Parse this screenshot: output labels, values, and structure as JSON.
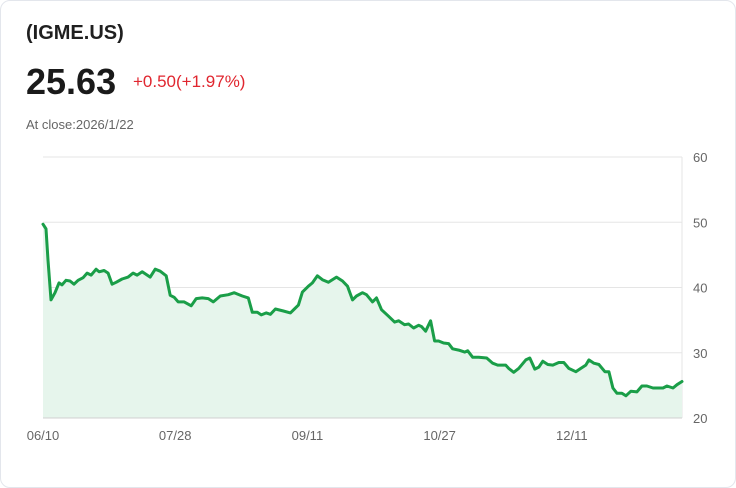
{
  "header": {
    "symbol": "(IGME.US)",
    "price": "25.63",
    "change": "+0.50(+1.97%)",
    "close_label": "At close:2026/1/22"
  },
  "colors": {
    "line": "#1a9e48",
    "fill": "#e6f5ec",
    "grid": "#e5e5e5",
    "down": "#e0262f"
  },
  "chart_data": {
    "type": "area",
    "title": "(IGME.US)",
    "xlabel": "",
    "ylabel": "",
    "ylim": [
      20,
      60
    ],
    "xlim": [
      0,
      159.5
    ],
    "y_ticks": [
      20,
      30,
      40,
      50,
      60
    ],
    "y_tick_labels": [
      "20",
      "30",
      "40",
      "50",
      "60"
    ],
    "x_ticks": [
      0,
      33,
      66,
      99,
      132
    ],
    "x_tick_labels": [
      "06/10",
      "07/28",
      "09/11",
      "10/27",
      "12/11"
    ],
    "grid": true,
    "x": [
      0,
      0.75,
      1.25,
      2,
      3,
      4,
      4.75,
      5.75,
      6.75,
      7.75,
      8.75,
      10,
      11,
      12,
      13.25,
      14,
      15.25,
      16.25,
      17.25,
      18.25,
      19.75,
      21.25,
      22.5,
      23.5,
      24.75,
      26.75,
      28,
      29.25,
      30.75,
      31.75,
      32.75,
      33.75,
      35.25,
      37,
      38.25,
      39.75,
      41.25,
      42.5,
      44.25,
      46.25,
      47.75,
      48.5,
      49.75,
      51.25,
      52.25,
      53.5,
      54.5,
      55.75,
      56.75,
      58,
      60,
      61.75,
      62.75,
      63.75,
      64.75,
      66.25,
      67.25,
      68.5,
      69.75,
      71.25,
      73.25,
      74.75,
      76,
      77.25,
      78.25,
      79.75,
      80.75,
      82.25,
      83.25,
      84.5,
      86.25,
      87.75,
      88.75,
      90.25,
      91.25,
      92.5,
      93.75,
      94.5,
      95.5,
      96.75,
      97.75,
      98.75,
      100,
      101.25,
      102.25,
      103.75,
      105.25,
      106,
      107.25,
      108.75,
      110.75,
      112.25,
      113.5,
      115.5,
      116.25,
      117.5,
      118.75,
      120.5,
      121.5,
      122.75,
      123.75,
      124.75,
      126,
      127.25,
      128.75,
      130,
      131.25,
      133,
      134.25,
      135.5,
      136.25,
      137.5,
      138.75,
      140.25,
      141.25,
      142.25,
      143.25,
      144.5,
      145.5,
      146.75,
      148.25,
      149.5,
      150.75,
      152.25,
      153.5,
      154.75,
      155.75,
      157.25,
      158.25,
      159.5
    ],
    "values": [
      49.7,
      49,
      44.2,
      38.1,
      39.2,
      40.7,
      40.4,
      41.1,
      41,
      40.5,
      41.1,
      41.5,
      42.2,
      41.9,
      42.8,
      42.4,
      42.6,
      42.2,
      40.5,
      40.8,
      41.3,
      41.6,
      42.2,
      41.9,
      42.4,
      41.6,
      42.8,
      42.5,
      41.8,
      38.8,
      38.5,
      37.8,
      37.8,
      37.2,
      38.3,
      38.4,
      38.3,
      37.8,
      38.7,
      38.9,
      39.2,
      39,
      38.7,
      38.4,
      36.2,
      36.2,
      35.8,
      36.1,
      35.9,
      36.7,
      36.4,
      36.1,
      36.7,
      37.3,
      39.3,
      40.2,
      40.7,
      41.8,
      41.2,
      40.8,
      41.6,
      41,
      40.2,
      38.1,
      38.7,
      39.2,
      38.9,
      37.8,
      38.4,
      36.6,
      35.6,
      34.7,
      34.9,
      34.3,
      34.4,
      33.8,
      34.2,
      34,
      33.3,
      34.9,
      31.8,
      31.8,
      31.5,
      31.4,
      30.6,
      30.4,
      30.1,
      30.3,
      29.3,
      29.3,
      29.2,
      28.4,
      28.1,
      28.1,
      27.6,
      27,
      27.6,
      28.9,
      29.2,
      27.5,
      27.8,
      28.7,
      28.2,
      28.1,
      28.5,
      28.5,
      27.6,
      27.1,
      27.6,
      28.1,
      28.9,
      28.4,
      28.2,
      27.1,
      27.1,
      24.6,
      23.8,
      23.8,
      23.4,
      24.1,
      24,
      24.9,
      24.9,
      24.6,
      24.6,
      24.6,
      24.9,
      24.6,
      25.1,
      25.6
    ]
  }
}
